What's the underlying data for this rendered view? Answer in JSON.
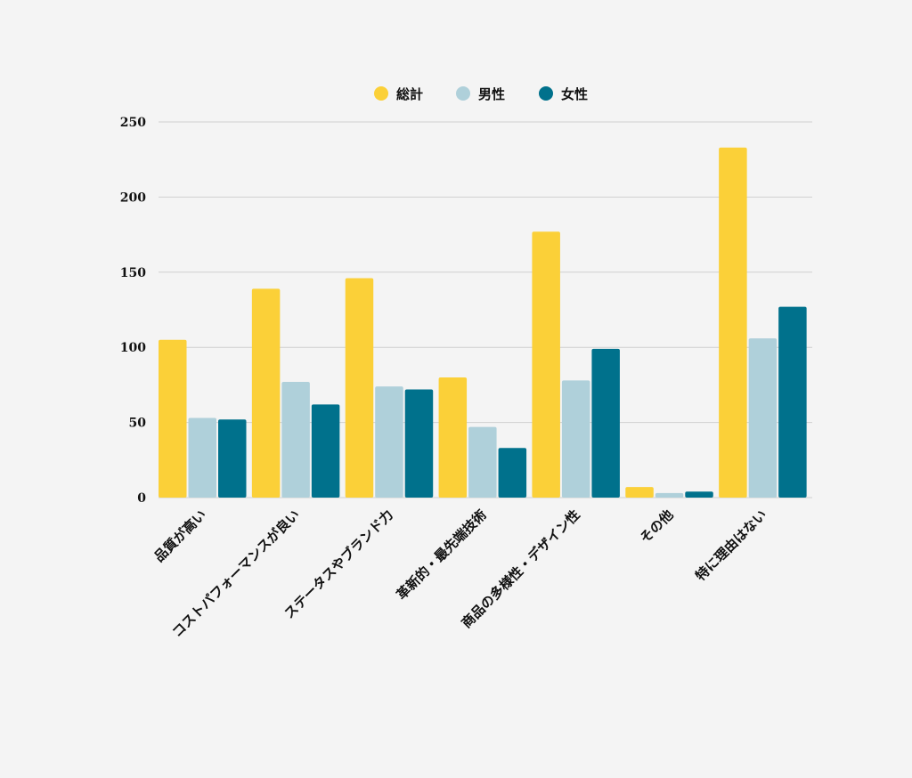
{
  "chart_data": {
    "type": "bar",
    "title": "",
    "xlabel": "",
    "ylabel": "",
    "ylim": [
      0,
      250
    ],
    "yticks": [
      0,
      50,
      100,
      150,
      200,
      250
    ],
    "grid": true,
    "legend_position": "top-center",
    "categories": [
      "品質が高い",
      "コストパフォーマンスが良い",
      "ステータスやブランド力",
      "革新的・最先端技術",
      "商品の多様性・デザイン性",
      "その他",
      "特に理由はない"
    ],
    "series": [
      {
        "name": "総計",
        "color": "#fbd038",
        "values": [
          105,
          139,
          146,
          80,
          177,
          7,
          233
        ]
      },
      {
        "name": "男性",
        "color": "#afd0da",
        "values": [
          53,
          77,
          74,
          47,
          78,
          3,
          106
        ]
      },
      {
        "name": "女性",
        "color": "#00718c",
        "values": [
          52,
          62,
          72,
          33,
          99,
          4,
          127
        ]
      }
    ]
  }
}
